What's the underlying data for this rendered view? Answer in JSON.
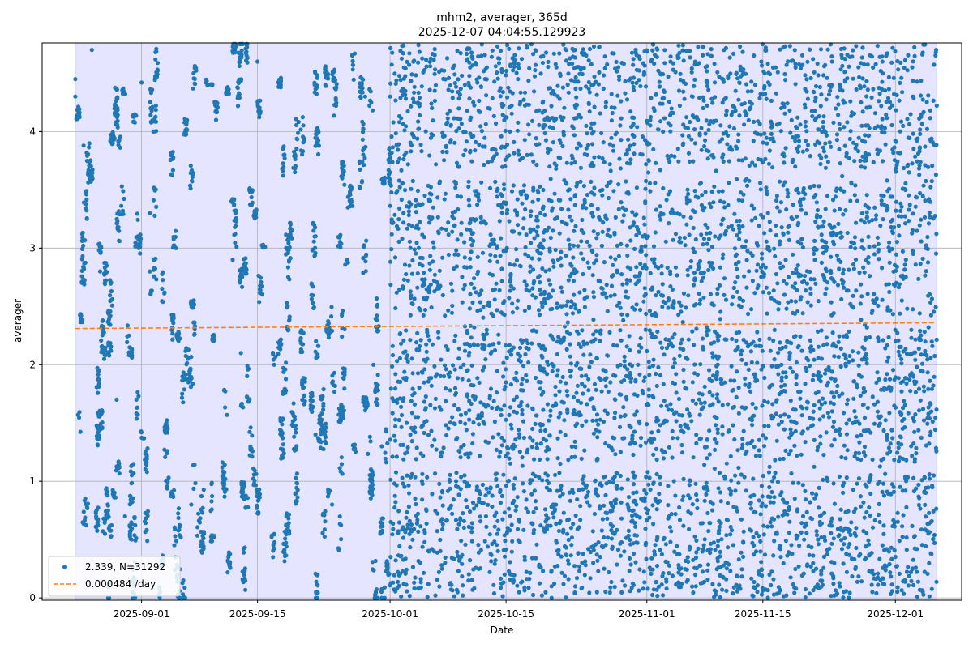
{
  "chart_data": {
    "type": "scatter",
    "title": "mhm2, averager, 365d",
    "subtitle": "2025-12-07 04:04:55.129923",
    "xlabel": "Date",
    "ylabel": "averager",
    "x_range": [
      "2025-08-20",
      "2025-12-09"
    ],
    "ylim": [
      -0.02,
      4.76
    ],
    "x_ticks": [
      "2025-09-01",
      "2025-09-15",
      "2025-10-01",
      "2025-10-15",
      "2025-11-01",
      "2025-11-15",
      "2025-12-01"
    ],
    "y_ticks": [
      0,
      1,
      2,
      3,
      4
    ],
    "grid": true,
    "legend_position": "lower-left",
    "shaded_span": [
      "2025-08-24",
      "2025-12-06"
    ],
    "series": [
      {
        "name": "2.339, N=31292",
        "kind": "points",
        "color": "#1f77b4",
        "x_span": [
          "2025-08-24",
          "2025-12-06"
        ],
        "count": 31292,
        "density_change": "2025-10-01",
        "value_range": [
          0,
          4.75
        ],
        "sample_points": [
          [
            "2025-08-24",
            4.3
          ],
          [
            "2025-08-24",
            4.45
          ],
          [
            "2025-08-25",
            3.88
          ],
          [
            "2025-08-26",
            4.7
          ],
          [
            "2025-08-27",
            2.8
          ],
          [
            "2025-08-29",
            1.7
          ],
          [
            "2025-08-30",
            0.7
          ],
          [
            "2025-09-01",
            4.42
          ],
          [
            "2025-09-02",
            3.3
          ],
          [
            "2025-09-02",
            2.8
          ],
          [
            "2025-09-04",
            1.5
          ],
          [
            "2025-09-07",
            0.8
          ],
          [
            "2025-09-10",
            4.1
          ],
          [
            "2025-09-12",
            2.9
          ],
          [
            "2025-09-13",
            2.1
          ],
          [
            "2025-09-15",
            4.6
          ],
          [
            "2025-09-17",
            2.0
          ],
          [
            "2025-09-19",
            3.1
          ],
          [
            "2025-09-22",
            1.4
          ],
          [
            "2025-09-24",
            0.8
          ],
          [
            "2025-09-28",
            4.3
          ],
          [
            "2025-09-29",
            2.0
          ],
          [
            "2025-09-30",
            1.3
          ],
          [
            "2025-10-01",
            4.3
          ]
        ]
      },
      {
        "name": "0.000484 /day",
        "kind": "trend",
        "color": "#ff7f0e",
        "slope_per_day": 0.000484,
        "x": [
          "2025-08-24",
          "2025-12-06"
        ],
        "y": [
          2.31,
          2.36
        ]
      }
    ]
  }
}
